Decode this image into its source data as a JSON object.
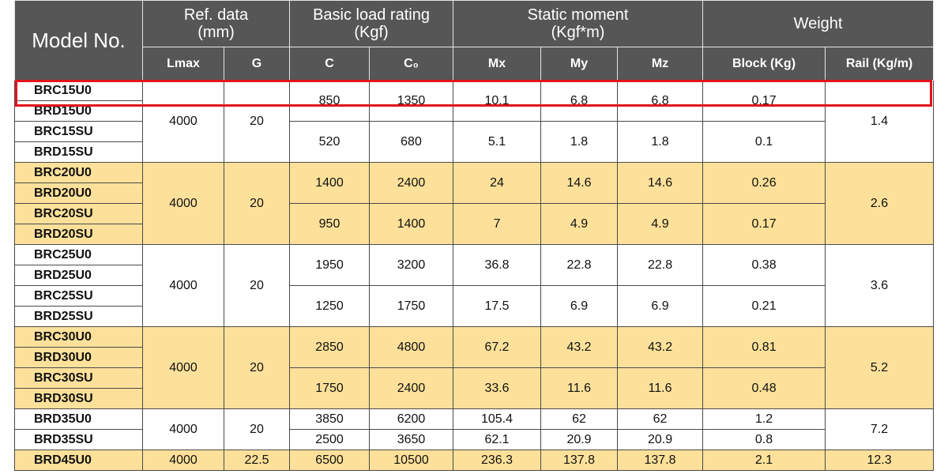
{
  "header": {
    "model_no": "Model No.",
    "ref_data": "Ref. data\n(mm)",
    "basic_load": "Basic load rating\n(Kgf)",
    "static_moment": "Static moment\n(Kgf*m)",
    "weight": "Weight",
    "lmax": "Lmax",
    "g": "G",
    "c": "C",
    "c0": "C₀",
    "mx": "Mx",
    "my": "My",
    "mz": "Mz",
    "block": "Block (Kg)",
    "rail": "Rail (Kg/m)"
  },
  "groups": [
    {
      "band": "white",
      "lmax": "4000",
      "g": "20",
      "rail": "1.4",
      "subs": [
        {
          "models": [
            "BRC15U0",
            "BRD15U0"
          ],
          "c": "850",
          "c0": "1350",
          "mx": "10.1",
          "my": "6.8",
          "mz": "6.8",
          "block": "0.17"
        },
        {
          "models": [
            "BRC15SU",
            "BRD15SU"
          ],
          "c": "520",
          "c0": "680",
          "mx": "5.1",
          "my": "1.8",
          "mz": "1.8",
          "block": "0.1"
        }
      ]
    },
    {
      "band": "yellow",
      "lmax": "4000",
      "g": "20",
      "rail": "2.6",
      "subs": [
        {
          "models": [
            "BRC20U0",
            "BRD20U0"
          ],
          "c": "1400",
          "c0": "2400",
          "mx": "24",
          "my": "14.6",
          "mz": "14.6",
          "block": "0.26"
        },
        {
          "models": [
            "BRC20SU",
            "BRD20SU"
          ],
          "c": "950",
          "c0": "1400",
          "mx": "7",
          "my": "4.9",
          "mz": "4.9",
          "block": "0.17"
        }
      ]
    },
    {
      "band": "white",
      "lmax": "4000",
      "g": "20",
      "rail": "3.6",
      "subs": [
        {
          "models": [
            "BRC25U0",
            "BRD25U0"
          ],
          "c": "1950",
          "c0": "3200",
          "mx": "36.8",
          "my": "22.8",
          "mz": "22.8",
          "block": "0.38"
        },
        {
          "models": [
            "BRC25SU",
            "BRD25SU"
          ],
          "c": "1250",
          "c0": "1750",
          "mx": "17.5",
          "my": "6.9",
          "mz": "6.9",
          "block": "0.21"
        }
      ]
    },
    {
      "band": "yellow",
      "lmax": "4000",
      "g": "20",
      "rail": "5.2",
      "subs": [
        {
          "models": [
            "BRC30U0",
            "BRD30U0"
          ],
          "c": "2850",
          "c0": "4800",
          "mx": "67.2",
          "my": "43.2",
          "mz": "43.2",
          "block": "0.81"
        },
        {
          "models": [
            "BRC30SU",
            "BRD30SU"
          ],
          "c": "1750",
          "c0": "2400",
          "mx": "33.6",
          "my": "11.6",
          "mz": "11.6",
          "block": "0.48"
        }
      ]
    },
    {
      "band": "white",
      "lmax": "4000",
      "g": "20",
      "rail": "7.2",
      "subs": [
        {
          "models": [
            "BRD35U0"
          ],
          "c": "3850",
          "c0": "6200",
          "mx": "105.4",
          "my": "62",
          "mz": "62",
          "block": "1.2"
        },
        {
          "models": [
            "BRD35SU"
          ],
          "c": "2500",
          "c0": "3650",
          "mx": "62.1",
          "my": "20.9",
          "mz": "20.9",
          "block": "0.8"
        }
      ]
    },
    {
      "band": "yellow",
      "lmax": "4000",
      "g": "22.5",
      "rail": "12.3",
      "subs": [
        {
          "models": [
            "BRD45U0"
          ],
          "c": "6500",
          "c0": "10500",
          "mx": "236.3",
          "my": "137.8",
          "mz": "137.8",
          "block": "2.1"
        }
      ]
    }
  ],
  "colors": {
    "header_bg": "#565656",
    "band_yellow": "#fde19a",
    "highlight": "#e2141c"
  }
}
